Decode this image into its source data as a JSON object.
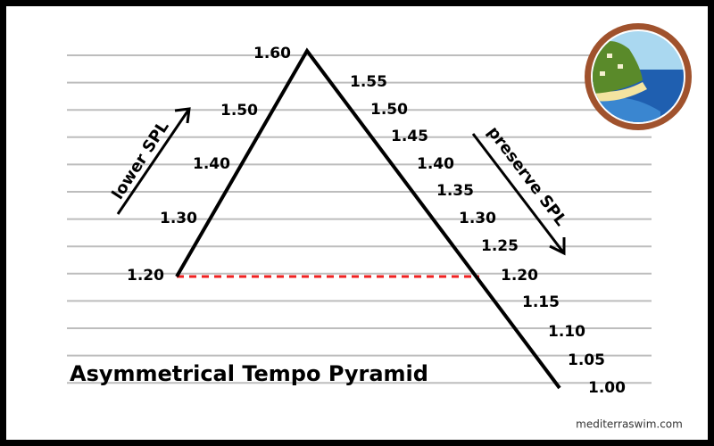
{
  "title": "Asymmetrical Tempo Pyramid",
  "ascent": {
    "label": "lower SPL",
    "values": [
      "1.20",
      "1.30",
      "1.40",
      "1.50",
      "1.60"
    ]
  },
  "descent": {
    "label": "preserve SPL",
    "values": [
      "1.55",
      "1.50",
      "1.45",
      "1.40",
      "1.35",
      "1.30",
      "1.25",
      "1.20",
      "1.15",
      "1.10",
      "1.05",
      "1.00"
    ]
  },
  "footer": "mediterraswim.com"
}
